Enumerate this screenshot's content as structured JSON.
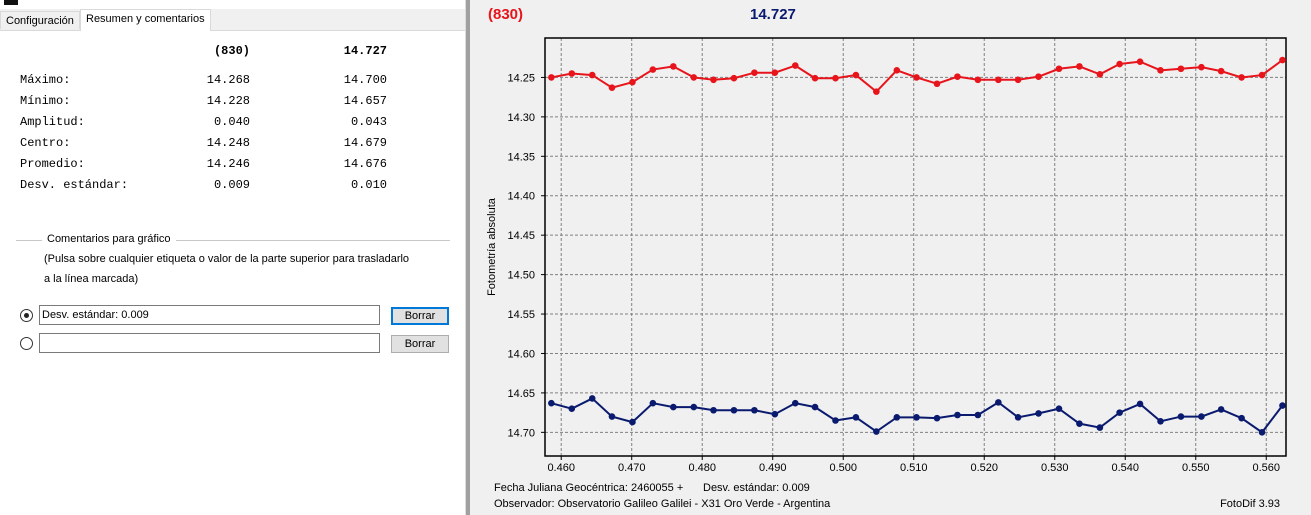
{
  "panel": {
    "tabs": [
      "Configuración",
      "Resumen y comentarios"
    ],
    "active_tab": 1,
    "table": {
      "header": [
        "(830)",
        "14.727"
      ],
      "rows": [
        [
          "Máximo:",
          "14.268",
          "14.700"
        ],
        [
          "Mínimo:",
          "14.228",
          "14.657"
        ],
        [
          "Amplitud:",
          "0.040",
          "0.043"
        ],
        [
          "Centro:",
          "14.248",
          "14.679"
        ],
        [
          "Promedio:",
          "14.246",
          "14.676"
        ],
        [
          "Desv. estándar:",
          "0.009",
          "0.010"
        ]
      ]
    },
    "comments": {
      "title": "Comentarios para gráfico",
      "note": [
        "(Pulsa sobre cualquier etiqueta o valor de la parte superior para trasladarlo",
        "a la línea marcada)"
      ],
      "entries": [
        "Desv. estándar: 0.009"
      ],
      "selected": 0,
      "buttons": [
        "Borrar",
        "Borrar"
      ]
    }
  },
  "chart_data": {
    "type": "line",
    "y_label": "Fotometría absoluta",
    "annotations": [
      "Fecha Juliana Geocéntrica: 2460055 +",
      "Desv. estándar: 0.009",
      "Observador: Observatorio Galileo Galilei - X31 Oro Verde - Argentina",
      "FotoDif 3.93"
    ],
    "x": [
      0.4586,
      0.4615,
      0.4644,
      0.4672,
      0.4701,
      0.473,
      0.4759,
      0.4788,
      0.4816,
      0.4845,
      0.4874,
      0.4903,
      0.4932,
      0.496,
      0.4989,
      0.5018,
      0.5047,
      0.5076,
      0.5104,
      0.5133,
      0.5162,
      0.5191,
      0.522,
      0.5248,
      0.5277,
      0.5306,
      0.5335,
      0.5364,
      0.5392,
      0.5421,
      0.545,
      0.5479,
      0.5508,
      0.5536,
      0.5565,
      0.5594,
      0.5623
    ],
    "series": [
      {
        "name": "(830)",
        "color": "#e8141b",
        "values": [
          14.25,
          14.245,
          14.247,
          14.263,
          14.256,
          14.24,
          14.236,
          14.25,
          14.253,
          14.251,
          14.244,
          14.244,
          14.235,
          14.251,
          14.251,
          14.247,
          14.268,
          14.241,
          14.25,
          14.258,
          14.249,
          14.253,
          14.253,
          14.253,
          14.249,
          14.239,
          14.236,
          14.246,
          14.233,
          14.23,
          14.241,
          14.239,
          14.237,
          14.242,
          14.25,
          14.247,
          14.228
        ]
      },
      {
        "name": "14.727",
        "color": "#0a1a6e",
        "values": [
          14.663,
          14.67,
          14.657,
          14.68,
          14.687,
          14.663,
          14.668,
          14.668,
          14.672,
          14.672,
          14.672,
          14.677,
          14.663,
          14.668,
          14.685,
          14.681,
          14.699,
          14.681,
          14.681,
          14.682,
          14.678,
          14.678,
          14.662,
          14.681,
          14.676,
          14.67,
          14.689,
          14.694,
          14.675,
          14.664,
          14.686,
          14.68,
          14.68,
          14.671,
          14.682,
          14.7,
          14.666
        ]
      }
    ],
    "xlim": [
      0.4577,
      0.5628
    ],
    "ylim": [
      14.2,
      14.73
    ],
    "y_inverted": true,
    "grid": true,
    "xticks": [
      {
        "value": 0.46,
        "label": "0.460"
      },
      {
        "value": 0.47,
        "label": "0.470"
      },
      {
        "value": 0.48,
        "label": "0.480"
      },
      {
        "value": 0.49,
        "label": "0.490"
      },
      {
        "value": 0.5,
        "label": "0.500"
      },
      {
        "value": 0.51,
        "label": "0.510"
      },
      {
        "value": 0.52,
        "label": "0.520"
      },
      {
        "value": 0.53,
        "label": "0.530"
      },
      {
        "value": 0.54,
        "label": "0.540"
      },
      {
        "value": 0.55,
        "label": "0.550"
      },
      {
        "value": 0.56,
        "label": "0.560"
      }
    ],
    "yticks": [
      14.25,
      {
        "value": 14.3,
        "label": "14.30"
      },
      14.35,
      {
        "value": 14.4,
        "label": "14.40"
      },
      14.45,
      {
        "value": 14.5,
        "label": "14.50"
      },
      14.55,
      {
        "value": 14.6,
        "label": "14.60"
      },
      14.65,
      {
        "value": 14.7,
        "label": "14.70"
      }
    ]
  }
}
